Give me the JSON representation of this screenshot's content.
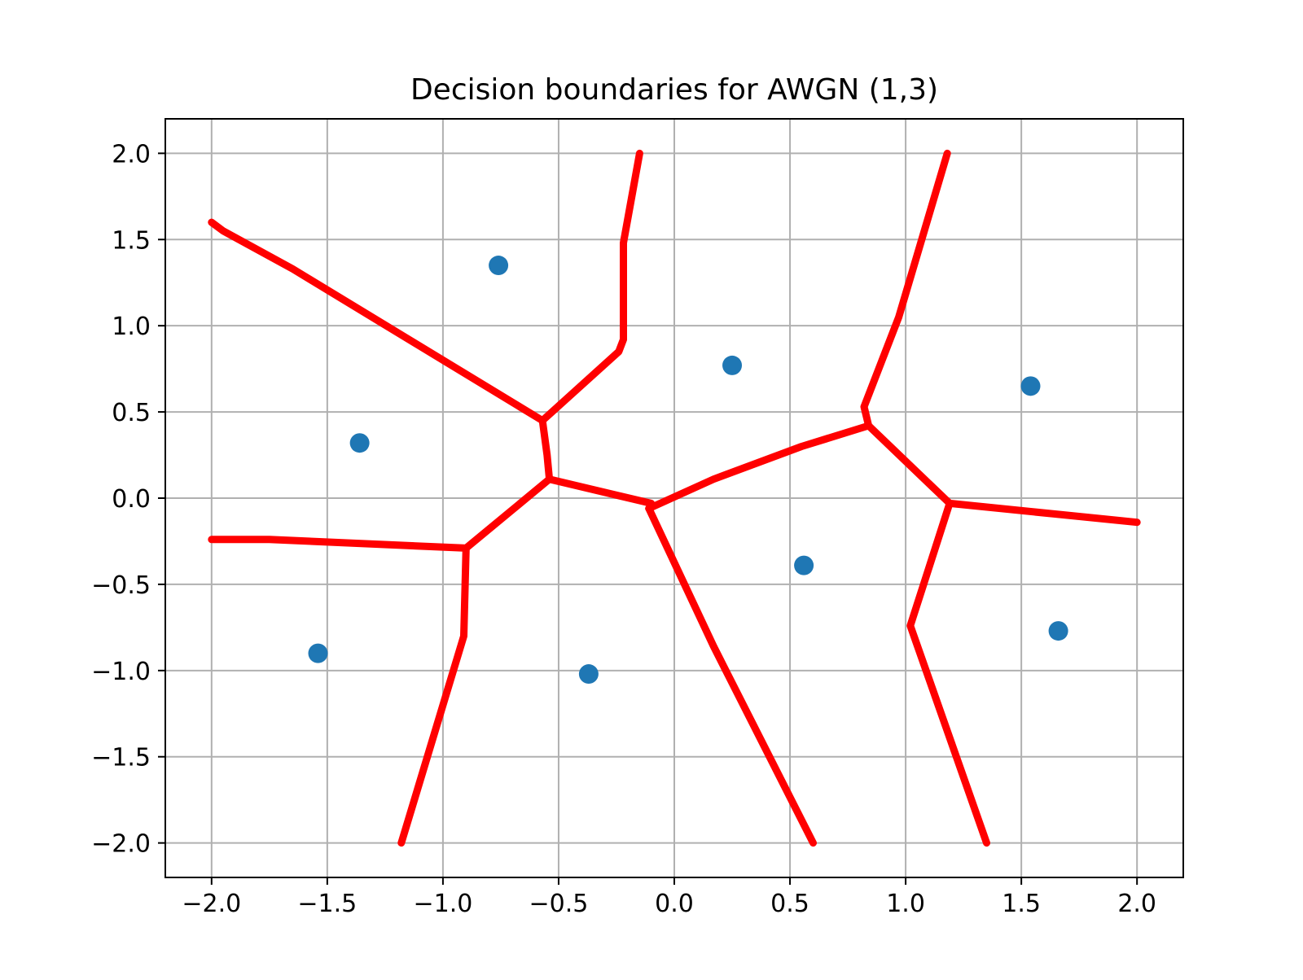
{
  "chart_data": {
    "type": "scatter",
    "title": "Decision boundaries for AWGN (1,3)",
    "xlabel": "",
    "ylabel": "",
    "xlim": [
      -2.2,
      2.2
    ],
    "ylim": [
      -2.2,
      2.2
    ],
    "x_ticks": [
      -2.0,
      -1.5,
      -1.0,
      -0.5,
      0.0,
      0.5,
      1.0,
      1.5,
      2.0
    ],
    "x_tick_labels": [
      "−2.0",
      "−1.5",
      "−1.0",
      "−0.5",
      "0.0",
      "0.5",
      "1.0",
      "1.5",
      "2.0"
    ],
    "y_ticks": [
      2.0,
      1.5,
      1.0,
      0.5,
      0.0,
      -0.5,
      -1.0,
      -1.5,
      -2.0
    ],
    "y_tick_labels": [
      "2.0",
      "1.5",
      "1.0",
      "0.5",
      "0.0",
      "−0.5",
      "−1.0",
      "−1.5",
      "−2.0"
    ],
    "grid": true,
    "points": {
      "color": "#1f77b4",
      "x": [
        -0.76,
        -1.36,
        -1.54,
        -0.37,
        0.25,
        0.56,
        1.54,
        1.66
      ],
      "y": [
        1.35,
        0.32,
        -0.9,
        -1.02,
        0.77,
        -0.39,
        0.65,
        -0.77
      ]
    },
    "boundaries": {
      "color": "#ff0000",
      "segments": [
        [
          [
            -2.0,
            1.6
          ],
          [
            -1.95,
            1.55
          ],
          [
            -1.65,
            1.33
          ],
          [
            -0.57,
            0.45
          ],
          [
            -0.55,
            0.25
          ],
          [
            -0.54,
            0.11
          ]
        ],
        [
          [
            -0.57,
            0.45
          ],
          [
            -0.24,
            0.85
          ],
          [
            -0.22,
            0.92
          ],
          [
            -0.22,
            1.48
          ],
          [
            -0.15,
            2.0
          ]
        ],
        [
          [
            -2.0,
            -0.24
          ],
          [
            -1.75,
            -0.24
          ],
          [
            -0.9,
            -0.29
          ],
          [
            -0.54,
            0.11
          ],
          [
            -0.1,
            -0.03
          ],
          [
            -0.11,
            -0.06
          ]
        ],
        [
          [
            -0.9,
            -0.29
          ],
          [
            -0.91,
            -0.8
          ],
          [
            -1.18,
            -2.0
          ]
        ],
        [
          [
            -0.11,
            -0.06
          ],
          [
            0.17,
            0.11
          ],
          [
            0.55,
            0.3
          ],
          [
            0.84,
            0.42
          ],
          [
            0.82,
            0.53
          ],
          [
            0.97,
            1.05
          ],
          [
            1.18,
            2.0
          ]
        ],
        [
          [
            -0.11,
            -0.06
          ],
          [
            0.17,
            -0.86
          ],
          [
            0.6,
            -2.0
          ]
        ],
        [
          [
            0.84,
            0.42
          ],
          [
            1.19,
            -0.03
          ],
          [
            2.0,
            -0.14
          ]
        ],
        [
          [
            1.19,
            -0.03
          ],
          [
            1.02,
            -0.74
          ],
          [
            1.35,
            -2.0
          ]
        ]
      ]
    }
  }
}
